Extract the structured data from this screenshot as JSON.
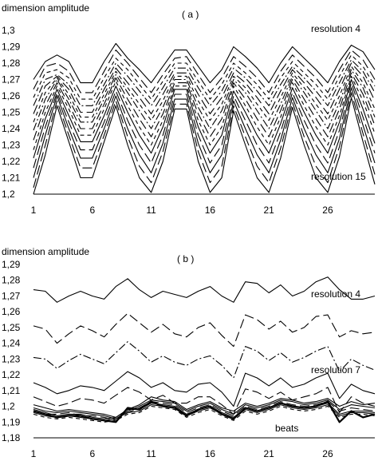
{
  "chart_data": [
    {
      "type": "line",
      "panel_label": "( a )",
      "ylabel": "dimension amplitude",
      "xlabel": "",
      "ylim": [
        1.2,
        1.3
      ],
      "y_ticks": [
        "1,3",
        "1,29",
        "1,28",
        "1,27",
        "1,26",
        "1,25",
        "1,24",
        "1,23",
        "1,22",
        "1,21",
        "1,2"
      ],
      "y_tick_values": [
        1.3,
        1.29,
        1.28,
        1.27,
        1.26,
        1.25,
        1.24,
        1.23,
        1.22,
        1.21,
        1.2
      ],
      "xlim": [
        1,
        30
      ],
      "x_ticks": [
        "1",
        "6",
        "11",
        "16",
        "21",
        "26"
      ],
      "x_tick_values": [
        1,
        6,
        11,
        16,
        21,
        26
      ],
      "grid": false,
      "legend": "none",
      "annotations": [
        {
          "text": "resolution 4",
          "anchor": "top-right"
        },
        {
          "text": "resolution 15",
          "anchor": "bottom-right"
        }
      ],
      "series": [
        {
          "dash": "solid",
          "values": [
            1.27,
            1.281,
            1.285,
            1.281,
            1.268,
            1.268,
            1.281,
            1.292,
            1.283,
            1.276,
            1.268,
            1.278,
            1.288,
            1.288,
            1.278,
            1.268,
            1.276,
            1.29,
            1.284,
            1.277,
            1.268,
            1.28,
            1.29,
            1.283,
            1.276,
            1.268,
            1.281,
            1.291,
            1.287,
            1.276
          ]
        },
        {
          "dash": "long",
          "values": [
            1.264,
            1.278,
            1.28,
            1.275,
            1.262,
            1.262,
            1.275,
            1.288,
            1.28,
            1.271,
            1.262,
            1.273,
            1.283,
            1.284,
            1.273,
            1.262,
            1.271,
            1.284,
            1.278,
            1.271,
            1.262,
            1.275,
            1.285,
            1.278,
            1.271,
            1.262,
            1.276,
            1.288,
            1.282,
            1.27
          ]
        },
        {
          "dash": "short",
          "values": [
            1.259,
            1.274,
            1.276,
            1.271,
            1.258,
            1.258,
            1.271,
            1.283,
            1.276,
            1.267,
            1.258,
            1.269,
            1.28,
            1.28,
            1.269,
            1.258,
            1.267,
            1.28,
            1.274,
            1.267,
            1.258,
            1.271,
            1.281,
            1.274,
            1.267,
            1.258,
            1.272,
            1.285,
            1.278,
            1.266
          ]
        },
        {
          "dash": "dashdot",
          "values": [
            1.254,
            1.27,
            1.273,
            1.267,
            1.254,
            1.254,
            1.267,
            1.28,
            1.272,
            1.263,
            1.254,
            1.265,
            1.277,
            1.277,
            1.265,
            1.254,
            1.263,
            1.277,
            1.271,
            1.263,
            1.254,
            1.267,
            1.278,
            1.271,
            1.263,
            1.254,
            1.268,
            1.282,
            1.275,
            1.262
          ]
        },
        {
          "dash": "long",
          "values": [
            1.249,
            1.266,
            1.272,
            1.264,
            1.25,
            1.25,
            1.264,
            1.277,
            1.268,
            1.259,
            1.249,
            1.261,
            1.274,
            1.274,
            1.261,
            1.249,
            1.259,
            1.274,
            1.268,
            1.259,
            1.249,
            1.263,
            1.276,
            1.268,
            1.259,
            1.249,
            1.264,
            1.28,
            1.272,
            1.257
          ]
        },
        {
          "dash": "short",
          "values": [
            1.244,
            1.262,
            1.271,
            1.261,
            1.247,
            1.247,
            1.261,
            1.275,
            1.265,
            1.255,
            1.245,
            1.257,
            1.272,
            1.272,
            1.257,
            1.245,
            1.255,
            1.272,
            1.265,
            1.255,
            1.245,
            1.259,
            1.274,
            1.265,
            1.255,
            1.245,
            1.26,
            1.278,
            1.268,
            1.252
          ]
        },
        {
          "dash": "dashdot",
          "values": [
            1.239,
            1.258,
            1.27,
            1.258,
            1.244,
            1.244,
            1.258,
            1.273,
            1.262,
            1.251,
            1.24,
            1.253,
            1.27,
            1.27,
            1.253,
            1.24,
            1.251,
            1.27,
            1.262,
            1.251,
            1.24,
            1.255,
            1.272,
            1.262,
            1.251,
            1.24,
            1.256,
            1.276,
            1.265,
            1.247
          ]
        },
        {
          "dash": "long",
          "values": [
            1.233,
            1.254,
            1.268,
            1.255,
            1.24,
            1.24,
            1.255,
            1.271,
            1.258,
            1.246,
            1.235,
            1.249,
            1.268,
            1.268,
            1.249,
            1.235,
            1.246,
            1.268,
            1.258,
            1.246,
            1.235,
            1.251,
            1.27,
            1.258,
            1.246,
            1.235,
            1.252,
            1.274,
            1.261,
            1.242
          ]
        },
        {
          "dash": "short",
          "values": [
            1.227,
            1.25,
            1.266,
            1.252,
            1.236,
            1.236,
            1.252,
            1.269,
            1.254,
            1.241,
            1.23,
            1.245,
            1.266,
            1.266,
            1.245,
            1.23,
            1.241,
            1.266,
            1.254,
            1.241,
            1.23,
            1.247,
            1.268,
            1.254,
            1.241,
            1.23,
            1.248,
            1.272,
            1.257,
            1.237
          ]
        },
        {
          "dash": "solid",
          "values": [
            1.222,
            1.246,
            1.264,
            1.248,
            1.232,
            1.232,
            1.248,
            1.266,
            1.25,
            1.236,
            1.225,
            1.241,
            1.264,
            1.264,
            1.241,
            1.225,
            1.236,
            1.263,
            1.25,
            1.236,
            1.225,
            1.243,
            1.265,
            1.25,
            1.236,
            1.225,
            1.244,
            1.27,
            1.252,
            1.231
          ]
        },
        {
          "dash": "long",
          "values": [
            1.216,
            1.241,
            1.262,
            1.244,
            1.227,
            1.227,
            1.244,
            1.263,
            1.245,
            1.23,
            1.219,
            1.236,
            1.261,
            1.261,
            1.236,
            1.219,
            1.23,
            1.26,
            1.245,
            1.23,
            1.219,
            1.238,
            1.262,
            1.245,
            1.23,
            1.219,
            1.239,
            1.268,
            1.247,
            1.225
          ]
        },
        {
          "dash": "solid",
          "values": [
            1.21,
            1.236,
            1.26,
            1.24,
            1.222,
            1.222,
            1.24,
            1.26,
            1.24,
            1.224,
            1.213,
            1.231,
            1.258,
            1.258,
            1.231,
            1.213,
            1.224,
            1.257,
            1.24,
            1.224,
            1.213,
            1.233,
            1.259,
            1.24,
            1.224,
            1.213,
            1.234,
            1.265,
            1.242,
            1.219
          ]
        },
        {
          "dash": "long",
          "values": [
            1.204,
            1.23,
            1.257,
            1.236,
            1.216,
            1.216,
            1.236,
            1.257,
            1.235,
            1.217,
            1.207,
            1.226,
            1.255,
            1.255,
            1.226,
            1.207,
            1.217,
            1.254,
            1.235,
            1.217,
            1.207,
            1.228,
            1.256,
            1.235,
            1.217,
            1.207,
            1.229,
            1.262,
            1.237,
            1.212
          ]
        },
        {
          "dash": "solid",
          "values": [
            1.2,
            1.224,
            1.254,
            1.232,
            1.21,
            1.21,
            1.232,
            1.254,
            1.23,
            1.21,
            1.201,
            1.22,
            1.252,
            1.252,
            1.22,
            1.201,
            1.21,
            1.251,
            1.23,
            1.21,
            1.201,
            1.222,
            1.253,
            1.23,
            1.21,
            1.201,
            1.223,
            1.259,
            1.232,
            1.206
          ]
        }
      ]
    },
    {
      "type": "line",
      "panel_label": "( b )",
      "ylabel": "dimension amplitude",
      "xlabel": "",
      "ylim": [
        1.18,
        1.29
      ],
      "y_ticks": [
        "1,29",
        "1,28",
        "1,27",
        "1,26",
        "1,25",
        "1,24",
        "1,23",
        "1,22",
        "1,21",
        "1,2",
        "1,19",
        "1,18"
      ],
      "y_tick_values": [
        1.29,
        1.28,
        1.27,
        1.26,
        1.25,
        1.24,
        1.23,
        1.22,
        1.21,
        1.2,
        1.19,
        1.18
      ],
      "xlim": [
        1,
        30
      ],
      "x_ticks": [
        "1",
        "6",
        "11",
        "16",
        "21",
        "26"
      ],
      "x_tick_values": [
        1,
        6,
        11,
        16,
        21,
        26
      ],
      "grid": false,
      "legend": "none",
      "annotations": [
        {
          "text": "resolution 4",
          "anchor": "upper-right"
        },
        {
          "text": "resolution 7",
          "anchor": "middle-right"
        },
        {
          "text": "beats",
          "anchor": "bottom-right"
        }
      ],
      "series": [
        {
          "dash": "solid",
          "values": [
            1.274,
            1.273,
            1.266,
            1.27,
            1.273,
            1.27,
            1.268,
            1.276,
            1.281,
            1.274,
            1.269,
            1.273,
            1.271,
            1.269,
            1.273,
            1.276,
            1.27,
            1.266,
            1.279,
            1.278,
            1.272,
            1.277,
            1.27,
            1.273,
            1.279,
            1.282,
            1.274,
            1.268,
            1.268,
            1.27
          ]
        },
        {
          "dash": "long",
          "values": [
            1.251,
            1.249,
            1.24,
            1.246,
            1.251,
            1.248,
            1.244,
            1.252,
            1.259,
            1.253,
            1.247,
            1.252,
            1.246,
            1.244,
            1.25,
            1.253,
            1.245,
            1.238,
            1.258,
            1.255,
            1.249,
            1.254,
            1.247,
            1.25,
            1.257,
            1.258,
            1.244,
            1.248,
            1.246,
            1.247
          ]
        },
        {
          "dash": "dashdot",
          "values": [
            1.231,
            1.23,
            1.224,
            1.229,
            1.233,
            1.23,
            1.227,
            1.234,
            1.241,
            1.235,
            1.228,
            1.232,
            1.228,
            1.226,
            1.23,
            1.232,
            1.226,
            1.218,
            1.238,
            1.235,
            1.229,
            1.234,
            1.228,
            1.231,
            1.235,
            1.238,
            1.222,
            1.23,
            1.226,
            1.223
          ]
        },
        {
          "dash": "solid",
          "values": [
            1.215,
            1.212,
            1.208,
            1.21,
            1.213,
            1.212,
            1.21,
            1.216,
            1.222,
            1.218,
            1.212,
            1.215,
            1.21,
            1.209,
            1.214,
            1.215,
            1.209,
            1.2,
            1.221,
            1.218,
            1.213,
            1.218,
            1.212,
            1.214,
            1.218,
            1.221,
            1.205,
            1.214,
            1.21,
            1.208
          ]
        },
        {
          "dash": "long",
          "values": [
            1.206,
            1.203,
            1.2,
            1.202,
            1.205,
            1.204,
            1.202,
            1.207,
            1.212,
            1.209,
            1.204,
            1.207,
            1.202,
            1.202,
            1.206,
            1.206,
            1.201,
            1.195,
            1.211,
            1.209,
            1.205,
            1.209,
            1.204,
            1.206,
            1.208,
            1.212,
            1.196,
            1.206,
            1.202,
            1.2
          ]
        },
        {
          "dash": "solid",
          "values": [
            1.201,
            1.199,
            1.197,
            1.198,
            1.197,
            1.196,
            1.195,
            1.193,
            1.198,
            1.201,
            1.206,
            1.204,
            1.203,
            1.198,
            1.201,
            1.203,
            1.199,
            1.197,
            1.202,
            1.2,
            1.202,
            1.205,
            1.204,
            1.202,
            1.203,
            1.205,
            1.2,
            1.203,
            1.201,
            1.202
          ]
        },
        {
          "dash": "solid",
          "values": [
            1.199,
            1.197,
            1.196,
            1.197,
            1.196,
            1.195,
            1.194,
            1.192,
            1.197,
            1.2,
            1.204,
            1.203,
            1.202,
            1.197,
            1.2,
            1.202,
            1.198,
            1.195,
            1.201,
            1.199,
            1.201,
            1.204,
            1.203,
            1.201,
            1.202,
            1.204,
            1.198,
            1.201,
            1.2,
            1.199
          ]
        },
        {
          "dash": "long",
          "values": [
            1.197,
            1.195,
            1.195,
            1.196,
            1.194,
            1.194,
            1.193,
            1.191,
            1.196,
            1.199,
            1.203,
            1.202,
            1.201,
            1.196,
            1.199,
            1.201,
            1.197,
            1.194,
            1.2,
            1.198,
            1.2,
            1.203,
            1.201,
            1.2,
            1.201,
            1.203,
            1.197,
            1.199,
            1.198,
            1.197
          ]
        },
        {
          "dash": "solid",
          "values": [
            1.198,
            1.196,
            1.194,
            1.195,
            1.195,
            1.193,
            1.192,
            1.193,
            1.198,
            1.198,
            1.202,
            1.201,
            1.2,
            1.195,
            1.198,
            1.2,
            1.196,
            1.193,
            1.199,
            1.197,
            1.199,
            1.202,
            1.2,
            1.199,
            1.2,
            1.202,
            1.195,
            1.197,
            1.197,
            1.196
          ]
        },
        {
          "dash": "solid",
          "values": [
            1.196,
            1.194,
            1.193,
            1.194,
            1.193,
            1.192,
            1.191,
            1.192,
            1.196,
            1.197,
            1.201,
            1.2,
            1.199,
            1.194,
            1.197,
            1.199,
            1.195,
            1.192,
            1.198,
            1.196,
            1.198,
            1.201,
            1.199,
            1.198,
            1.199,
            1.201,
            1.194,
            1.196,
            1.196,
            1.195
          ]
        },
        {
          "dash": "short",
          "values": [
            1.195,
            1.193,
            1.192,
            1.193,
            1.192,
            1.191,
            1.19,
            1.191,
            1.195,
            1.196,
            1.2,
            1.199,
            1.198,
            1.193,
            1.196,
            1.198,
            1.194,
            1.191,
            1.197,
            1.195,
            1.197,
            1.2,
            1.198,
            1.197,
            1.198,
            1.2,
            1.193,
            1.195,
            1.195,
            1.194
          ]
        },
        {
          "dash": "solid",
          "width": 2.2,
          "values": [
            1.197,
            1.195,
            1.193,
            1.194,
            1.194,
            1.192,
            1.191,
            1.19,
            1.199,
            1.198,
            1.203,
            1.2,
            1.199,
            1.194,
            1.198,
            1.2,
            1.195,
            1.192,
            1.199,
            1.197,
            1.199,
            1.202,
            1.2,
            1.199,
            1.2,
            1.203,
            1.19,
            1.197,
            1.193,
            1.195
          ]
        }
      ]
    }
  ]
}
